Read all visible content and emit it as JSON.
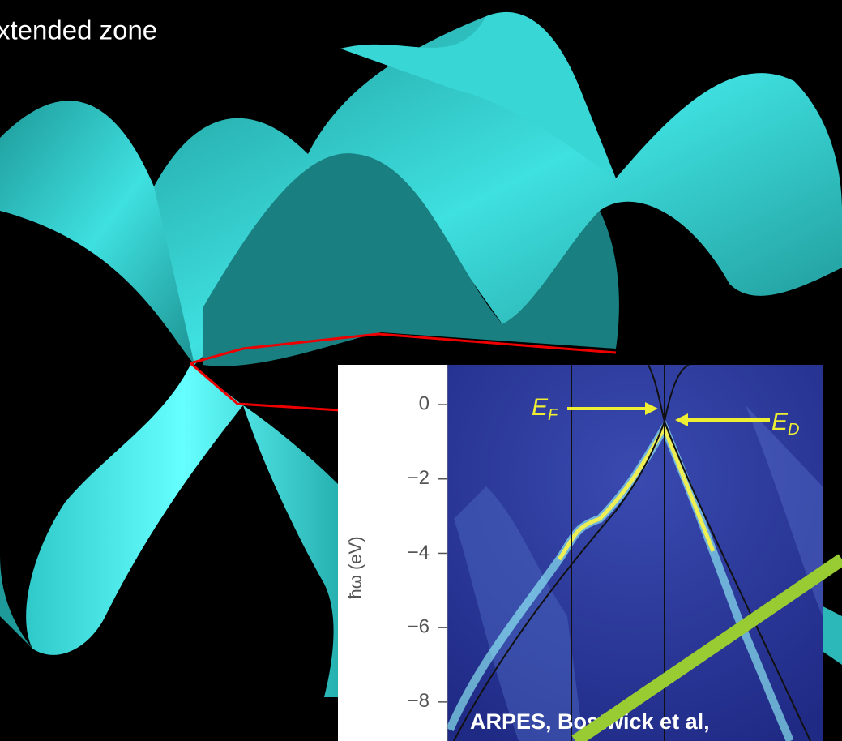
{
  "title": "xtended zone",
  "inset": {
    "y_label": "ħω (eV)",
    "ylim": [
      -9.05,
      1.07
    ],
    "yticks": [
      0,
      {
        "value": -2,
        "label": "−2"
      },
      {
        "value": -4,
        "label": "−4"
      },
      {
        "value": -6,
        "label": "−6"
      },
      {
        "value": -8,
        "label": "−8"
      }
    ],
    "fermi_label": {
      "symbol": "E",
      "subscript": "F"
    },
    "dirac_label": {
      "symbol": "E",
      "subscript": "D"
    },
    "caption": "ARPES, Bostwick et al,"
  }
}
